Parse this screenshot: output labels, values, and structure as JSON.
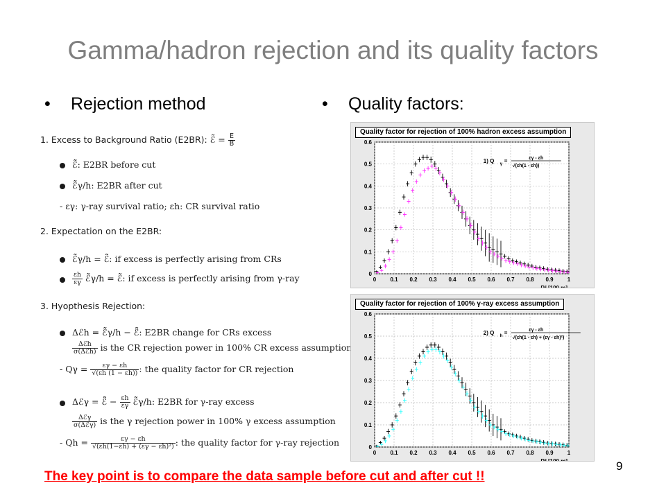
{
  "slide": {
    "title": "Gamma/hadron rejection and its quality factors",
    "left_heading": "Rejection method",
    "right_heading": "Quality factors:",
    "bullet": "•",
    "footer": "The key point is to compare the data sample before cut and after cut !!",
    "page_number": "9"
  },
  "notes": {
    "s1_title": "1.  Excess to Background Ratio (E2BR):",
    "s1_formula_lhs": "ℰ̃ =",
    "s1_formula_num": "E",
    "s1_formula_den": "B",
    "s1_b1_sym": "ℰ̃",
    "s1_b1": ": E2BR before cut",
    "s1_b2_sym": "ℰ̃γ/h",
    "s1_b2": ": E2BR after cut",
    "s1_d1": "-  εγ: γ-ray survival ratio;  εh: CR survival ratio",
    "s2_title": "2.  Expectation on the E2BR:",
    "s2_b1": "ℰ̃γ/h = ℰ̃: if excess is perfectly arising from CRs",
    "s2_b2_num": "εh",
    "s2_b2_den": "εγ",
    "s2_b2": "ℰ̃γ/h = ℰ̃: if excess is perfectly arising from γ-ray",
    "s3_title": "3.  Hyopthesis Rejection:",
    "s3_b1": "Δℰh = ℰ̃γ/h − ℰ̃: E2BR change for CRs excess",
    "s3_f1_num": "Δℰh",
    "s3_f1_den": "σ(Δℰh)",
    "s3_f1_text": " is the CR rejection power in 100% CR excess assumption",
    "s3_q1_lhs": "-  Qγ =",
    "s3_q1_num": "εγ − εh",
    "s3_q1_den": "√(εh (1 − εh))",
    "s3_q1_text": ": the quality factor for CR rejection",
    "s3_b2_pre": "Δℰγ = ℰ̃ −",
    "s3_b2_num": "εh",
    "s3_b2_den": "εγ",
    "s3_b2_post": "ℰ̃γ/h: E2BR for γ-ray excess",
    "s3_f2_num": "Δℰγ",
    "s3_f2_den": "σ(Δℰγ)",
    "s3_f2_text": " is the γ rejection power in 100% γ excess assumption",
    "s3_q2_lhs": "-  Qh =",
    "s3_q2_num": "εγ − εh",
    "s3_q2_den": "√(εh(1−εh) + (εγ − εh)²)",
    "s3_q2_text": ": the quality factor for γ-ray rejection"
  },
  "chart_data": [
    {
      "type": "scatter",
      "title": "Quality factor for rejection of 100% hadron excess assumption",
      "annotation_label": "1)  Q",
      "annotation_sub": "γ",
      "annotation_num": "εγ - εh",
      "annotation_den": "√(εh(1 - εh))",
      "xlabel": "R² [100 m]",
      "xlim": [
        0,
        1
      ],
      "ylim": [
        0,
        0.6
      ],
      "xticks": [
        "0",
        "0.1",
        "0.2",
        "0.3",
        "0.4",
        "0.5",
        "0.6",
        "0.7",
        "0.8",
        "0.9",
        "1"
      ],
      "yticks": [
        "0",
        "0.1",
        "0.2",
        "0.3",
        "0.4",
        "0.5",
        "0.6"
      ],
      "grid": true,
      "series": [
        {
          "color": "#000000",
          "x": [
            0.01,
            0.03,
            0.05,
            0.07,
            0.09,
            0.11,
            0.13,
            0.15,
            0.17,
            0.19,
            0.21,
            0.23,
            0.25,
            0.27,
            0.29,
            0.31,
            0.33,
            0.35,
            0.37,
            0.39,
            0.41,
            0.43,
            0.45,
            0.47,
            0.49,
            0.51,
            0.53,
            0.55,
            0.57,
            0.59,
            0.61,
            0.63,
            0.65,
            0.67,
            0.69,
            0.71,
            0.73,
            0.75,
            0.77,
            0.79,
            0.81,
            0.83,
            0.85,
            0.87,
            0.89,
            0.91,
            0.93,
            0.95,
            0.97,
            0.99
          ],
          "y": [
            0.01,
            0.03,
            0.06,
            0.1,
            0.15,
            0.21,
            0.28,
            0.35,
            0.41,
            0.46,
            0.5,
            0.52,
            0.53,
            0.53,
            0.52,
            0.5,
            0.47,
            0.44,
            0.41,
            0.37,
            0.34,
            0.31,
            0.28,
            0.25,
            0.22,
            0.2,
            0.18,
            0.16,
            0.14,
            0.12,
            0.11,
            0.1,
            0.09,
            0.08,
            0.07,
            0.06,
            0.055,
            0.05,
            0.045,
            0.04,
            0.035,
            0.03,
            0.027,
            0.024,
            0.021,
            0.018,
            0.016,
            0.014,
            0.012,
            0.01
          ],
          "err": [
            0.005,
            0.008,
            0.01,
            0.012,
            0.012,
            0.012,
            0.012,
            0.012,
            0.012,
            0.012,
            0.012,
            0.012,
            0.012,
            0.012,
            0.014,
            0.014,
            0.016,
            0.016,
            0.018,
            0.02,
            0.022,
            0.025,
            0.03,
            0.035,
            0.04,
            0.045,
            0.05,
            0.055,
            0.06,
            0.065,
            0.06,
            0.06,
            0.06,
            0.01,
            0.01,
            0.01,
            0.01,
            0.01,
            0.01,
            0.01,
            0.01,
            0.01,
            0.01,
            0.01,
            0.01,
            0.01,
            0.01,
            0.01,
            0.01,
            0.01
          ]
        },
        {
          "color": "#ff33ff",
          "x": [
            0.01,
            0.03,
            0.05,
            0.07,
            0.09,
            0.11,
            0.13,
            0.15,
            0.17,
            0.19,
            0.21,
            0.23,
            0.25,
            0.27,
            0.29,
            0.31,
            0.33,
            0.35,
            0.37,
            0.39,
            0.41,
            0.43,
            0.45,
            0.47,
            0.49,
            0.51,
            0.53,
            0.55,
            0.57,
            0.59,
            0.61,
            0.63,
            0.65,
            0.67,
            0.69,
            0.71,
            0.73,
            0.75,
            0.77,
            0.79,
            0.81,
            0.83,
            0.85,
            0.87,
            0.89,
            0.91,
            0.93,
            0.95,
            0.97,
            0.99
          ],
          "y": [
            0.005,
            0.015,
            0.035,
            0.065,
            0.1,
            0.15,
            0.21,
            0.27,
            0.33,
            0.38,
            0.42,
            0.45,
            0.47,
            0.48,
            0.49,
            0.48,
            0.46,
            0.43,
            0.4,
            0.37,
            0.34,
            0.31,
            0.28,
            0.25,
            0.22,
            0.19,
            0.16,
            0.14,
            0.12,
            0.1,
            0.09,
            0.08,
            0.07,
            0.06,
            0.055,
            0.05,
            0.045,
            0.04,
            0.035,
            0.03,
            0.027,
            0.024,
            0.021,
            0.018,
            0.016,
            0.014,
            0.012,
            0.01,
            0.008,
            0.006
          ],
          "err": [
            0.005,
            0.008,
            0.01,
            0.01,
            0.01,
            0.01,
            0.01,
            0.01,
            0.01,
            0.01,
            0.01,
            0.01,
            0.01,
            0.01,
            0.01,
            0.012,
            0.012,
            0.012,
            0.012,
            0.012,
            0.012,
            0.012,
            0.012,
            0.012,
            0.012,
            0.012,
            0.012,
            0.012,
            0.012,
            0.012,
            0.01,
            0.01,
            0.01,
            0.01,
            0.01,
            0.01,
            0.01,
            0.01,
            0.01,
            0.01,
            0.01,
            0.01,
            0.01,
            0.01,
            0.01,
            0.01,
            0.01,
            0.01,
            0.01,
            0.01
          ]
        }
      ]
    },
    {
      "type": "scatter",
      "title": "Quality factor for rejection of 100% γ-ray excess assumption",
      "annotation_label": "2)  Q",
      "annotation_sub": "h",
      "annotation_num": "εγ - εh",
      "annotation_den": "√(εh(1 - εh) + (εγ - εh)²)",
      "xlabel": "R² [100 m]",
      "xlim": [
        0,
        1
      ],
      "ylim": [
        0,
        0.6
      ],
      "xticks": [
        "0",
        "0.1",
        "0.2",
        "0.3",
        "0.4",
        "0.5",
        "0.6",
        "0.7",
        "0.8",
        "0.9",
        "1"
      ],
      "yticks": [
        "0",
        "0.1",
        "0.2",
        "0.3",
        "0.4",
        "0.5",
        "0.6"
      ],
      "grid": true,
      "series": [
        {
          "color": "#000000",
          "x": [
            0.01,
            0.03,
            0.05,
            0.07,
            0.09,
            0.11,
            0.13,
            0.15,
            0.17,
            0.19,
            0.21,
            0.23,
            0.25,
            0.27,
            0.29,
            0.31,
            0.33,
            0.35,
            0.37,
            0.39,
            0.41,
            0.43,
            0.45,
            0.47,
            0.49,
            0.51,
            0.53,
            0.55,
            0.57,
            0.59,
            0.61,
            0.63,
            0.65,
            0.67,
            0.69,
            0.71,
            0.73,
            0.75,
            0.77,
            0.79,
            0.81,
            0.83,
            0.85,
            0.87,
            0.89,
            0.91,
            0.93,
            0.95,
            0.97,
            0.99
          ],
          "y": [
            0.005,
            0.02,
            0.04,
            0.07,
            0.1,
            0.14,
            0.19,
            0.24,
            0.29,
            0.34,
            0.38,
            0.41,
            0.43,
            0.45,
            0.46,
            0.46,
            0.45,
            0.43,
            0.41,
            0.38,
            0.35,
            0.32,
            0.29,
            0.26,
            0.23,
            0.2,
            0.18,
            0.16,
            0.14,
            0.12,
            0.1,
            0.09,
            0.08,
            0.07,
            0.06,
            0.055,
            0.05,
            0.045,
            0.04,
            0.035,
            0.03,
            0.027,
            0.024,
            0.021,
            0.018,
            0.016,
            0.014,
            0.012,
            0.01,
            0.008
          ],
          "err": [
            0.005,
            0.008,
            0.01,
            0.012,
            0.012,
            0.012,
            0.012,
            0.012,
            0.012,
            0.012,
            0.012,
            0.012,
            0.012,
            0.012,
            0.012,
            0.012,
            0.014,
            0.014,
            0.016,
            0.018,
            0.02,
            0.022,
            0.025,
            0.03,
            0.035,
            0.04,
            0.045,
            0.05,
            0.05,
            0.05,
            0.05,
            0.05,
            0.05,
            0.01,
            0.01,
            0.01,
            0.01,
            0.01,
            0.01,
            0.01,
            0.01,
            0.01,
            0.01,
            0.01,
            0.01,
            0.01,
            0.01,
            0.01,
            0.01,
            0.01
          ]
        },
        {
          "color": "#33ffff",
          "x": [
            0.01,
            0.03,
            0.05,
            0.07,
            0.09,
            0.11,
            0.13,
            0.15,
            0.17,
            0.19,
            0.21,
            0.23,
            0.25,
            0.27,
            0.29,
            0.31,
            0.33,
            0.35,
            0.37,
            0.39,
            0.41,
            0.43,
            0.45,
            0.47,
            0.49,
            0.51,
            0.53,
            0.55,
            0.57,
            0.59,
            0.61,
            0.63,
            0.65,
            0.67,
            0.69,
            0.71,
            0.73,
            0.75,
            0.77,
            0.79,
            0.81,
            0.83,
            0.85,
            0.87,
            0.89,
            0.91,
            0.93,
            0.95,
            0.97,
            0.99
          ],
          "y": [
            0.003,
            0.012,
            0.028,
            0.05,
            0.08,
            0.12,
            0.16,
            0.21,
            0.26,
            0.31,
            0.35,
            0.38,
            0.41,
            0.43,
            0.44,
            0.44,
            0.43,
            0.41,
            0.39,
            0.36,
            0.33,
            0.3,
            0.27,
            0.24,
            0.21,
            0.18,
            0.16,
            0.14,
            0.12,
            0.1,
            0.09,
            0.08,
            0.07,
            0.06,
            0.055,
            0.05,
            0.045,
            0.04,
            0.035,
            0.03,
            0.027,
            0.024,
            0.021,
            0.018,
            0.016,
            0.014,
            0.012,
            0.01,
            0.008,
            0.006
          ],
          "err": [
            0.005,
            0.008,
            0.01,
            0.01,
            0.01,
            0.01,
            0.01,
            0.01,
            0.01,
            0.01,
            0.01,
            0.01,
            0.01,
            0.01,
            0.01,
            0.012,
            0.012,
            0.012,
            0.012,
            0.012,
            0.012,
            0.012,
            0.012,
            0.012,
            0.012,
            0.012,
            0.012,
            0.012,
            0.012,
            0.012,
            0.01,
            0.01,
            0.01,
            0.01,
            0.01,
            0.01,
            0.01,
            0.01,
            0.01,
            0.01,
            0.01,
            0.01,
            0.01,
            0.01,
            0.01,
            0.01,
            0.01,
            0.01,
            0.01,
            0.01
          ]
        }
      ]
    }
  ]
}
